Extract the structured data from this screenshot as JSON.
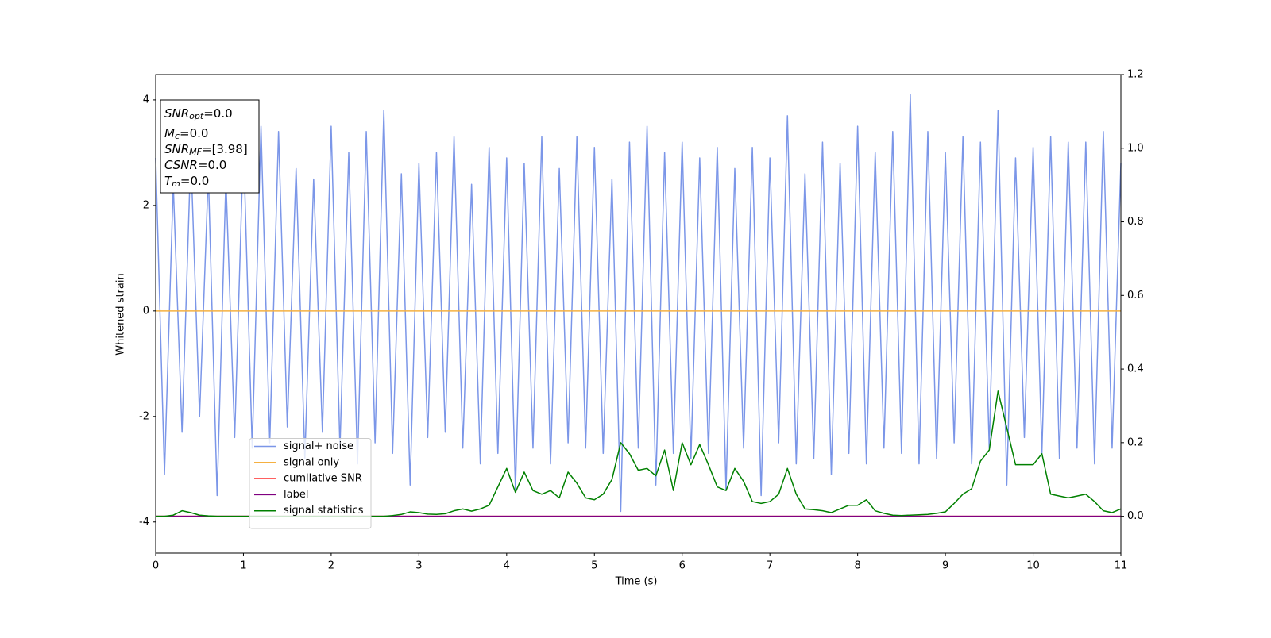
{
  "chart_data": {
    "type": "line",
    "xlabel": "Time (s)",
    "ylabel": "Whitened strain",
    "xlim": [
      0,
      11
    ],
    "xticks": [
      0,
      1,
      2,
      3,
      4,
      5,
      6,
      7,
      8,
      9,
      10,
      11
    ],
    "ylim": [
      -4.59,
      4.48
    ],
    "yticks": [
      -4,
      -2,
      0,
      2,
      4
    ],
    "y2lim": [
      -0.1,
      1.2
    ],
    "y2ticks": [
      {
        "value": 0,
        "label": "0.0"
      },
      {
        "value": 0.2,
        "label": "0.2"
      },
      {
        "value": 0.4,
        "label": "0.4"
      },
      {
        "value": 0.6,
        "label": "0.6"
      },
      {
        "value": 0.8,
        "label": "0.8"
      },
      {
        "value": 1,
        "label": "1.0"
      },
      {
        "value": 1.2,
        "label": "1.2"
      }
    ],
    "legend": "lower left",
    "stats_box": [
      {
        "name": "SNR",
        "sub": "opt",
        "value": "=0.0"
      },
      {
        "name": "M",
        "sub": "c",
        "value": "=0.0"
      },
      {
        "name": "SNR",
        "sub": "MF",
        "value": "=[3.98]"
      },
      {
        "name": "CSNR",
        "sub": "",
        "value": "=0.0"
      },
      {
        "name": "T",
        "sub": "m",
        "value": "=0.0"
      }
    ],
    "series": [
      {
        "name": "signal+ noise",
        "color": "#7b96e8",
        "x": [
          0,
          0.1,
          0.2,
          0.3,
          0.4,
          0.5,
          0.6,
          0.7,
          0.8,
          0.9,
          1,
          1.1,
          1.2,
          1.3,
          1.4,
          1.5,
          1.6,
          1.7,
          1.8,
          1.9,
          2,
          2.1,
          2.2,
          2.3,
          2.4,
          2.5,
          2.6,
          2.7,
          2.8,
          2.9,
          3,
          3.1,
          3.2,
          3.3,
          3.4,
          3.5,
          3.6,
          3.7,
          3.8,
          3.9,
          4,
          4.1,
          4.2,
          4.3,
          4.4,
          4.5,
          4.6,
          4.7,
          4.8,
          4.9,
          5,
          5.1,
          5.2,
          5.3,
          5.4,
          5.5,
          5.6,
          5.7,
          5.8,
          5.9,
          6,
          6.1,
          6.2,
          6.3,
          6.4,
          6.5,
          6.6,
          6.7,
          6.8,
          6.9,
          7,
          7.1,
          7.2,
          7.3,
          7.4,
          7.5,
          7.6,
          7.7,
          7.8,
          7.9,
          8,
          8.1,
          8.2,
          8.3,
          8.4,
          8.5,
          8.6,
          8.7,
          8.8,
          8.9,
          9,
          9.1,
          9.2,
          9.3,
          9.4,
          9.5,
          9.6,
          9.7,
          9.8,
          9.9,
          10,
          10.1,
          10.2,
          10.3,
          10.4,
          10.5,
          10.6,
          10.7,
          10.8,
          10.9,
          11
        ],
        "values": [
          2.9,
          -3.1,
          2.4,
          -2.3,
          3.0,
          -2.0,
          2.6,
          -3.5,
          2.5,
          -2.4,
          3.2,
          -2.6,
          3.5,
          -2.5,
          3.4,
          -2.2,
          2.7,
          -2.8,
          2.5,
          -2.3,
          3.5,
          -2.6,
          3.0,
          -2.9,
          3.4,
          -2.5,
          3.8,
          -2.7,
          2.6,
          -3.3,
          2.8,
          -2.4,
          3.0,
          -2.3,
          3.3,
          -2.6,
          2.4,
          -2.9,
          3.1,
          -2.7,
          2.9,
          -3.4,
          2.8,
          -2.6,
          3.3,
          -2.9,
          2.7,
          -2.5,
          3.3,
          -2.6,
          3.1,
          -2.7,
          2.5,
          -3.8,
          3.2,
          -2.6,
          3.5,
          -3.3,
          3.0,
          -2.7,
          3.2,
          -2.8,
          2.9,
          -2.7,
          3.1,
          -3.4,
          2.7,
          -2.6,
          3.1,
          -3.5,
          2.9,
          -2.5,
          3.7,
          -2.9,
          2.6,
          -2.8,
          3.2,
          -3.1,
          2.8,
          -2.7,
          3.5,
          -2.9,
          3.0,
          -2.6,
          3.4,
          -2.7,
          4.1,
          -2.9,
          3.4,
          -2.8,
          3.0,
          -2.5,
          3.3,
          -2.9,
          3.2,
          -2.6,
          3.8,
          -3.3,
          2.9,
          -2.4,
          3.1,
          -2.7,
          3.3,
          -2.8,
          3.2,
          -2.6,
          3.2,
          -2.9,
          3.4,
          -2.6,
          2.8
        ]
      },
      {
        "name": "signal only",
        "color": "#f5b041",
        "x": [
          0,
          11
        ],
        "values": [
          0,
          0
        ]
      },
      {
        "name": "cumilative SNR",
        "color": "red",
        "axis": "y2",
        "x": [
          0,
          11
        ],
        "values": [
          0,
          0
        ]
      },
      {
        "name": "label",
        "color": "purple",
        "axis": "y2",
        "x": [
          0,
          11
        ],
        "values": [
          0,
          0
        ]
      },
      {
        "name": "signal statistics",
        "color": "green",
        "axis": "y2",
        "x": [
          0,
          0.1,
          0.2,
          0.3,
          0.4,
          0.5,
          0.6,
          0.7,
          0.8,
          0.9,
          1,
          1.1,
          1.2,
          1.3,
          1.4,
          1.5,
          1.6,
          1.7,
          1.8,
          1.9,
          2,
          2.1,
          2.2,
          2.3,
          2.4,
          2.5,
          2.6,
          2.7,
          2.8,
          2.9,
          3,
          3.1,
          3.2,
          3.3,
          3.4,
          3.5,
          3.6,
          3.7,
          3.8,
          3.9,
          4,
          4.1,
          4.2,
          4.3,
          4.4,
          4.5,
          4.6,
          4.7,
          4.8,
          4.9,
          5,
          5.1,
          5.2,
          5.3,
          5.4,
          5.5,
          5.6,
          5.7,
          5.8,
          5.9,
          6,
          6.1,
          6.2,
          6.3,
          6.4,
          6.5,
          6.6,
          6.7,
          6.8,
          6.9,
          7,
          7.1,
          7.2,
          7.3,
          7.4,
          7.5,
          7.6,
          7.7,
          7.8,
          7.9,
          8,
          8.1,
          8.2,
          8.3,
          8.4,
          8.5,
          8.6,
          8.7,
          8.8,
          8.9,
          9,
          9.1,
          9.2,
          9.3,
          9.4,
          9.5,
          9.6,
          9.7,
          9.8,
          9.9,
          10,
          10.1,
          10.2,
          10.3,
          10.4,
          10.5,
          10.6,
          10.7,
          10.8,
          10.9,
          11
        ],
        "values": [
          0.0,
          0.0,
          0.003,
          0.015,
          0.01,
          0.003,
          0.001,
          0.0,
          0.0,
          0.0,
          0.0,
          0.0,
          0.0,
          0.0,
          0.0,
          0.0,
          0.0,
          0.0,
          0.0,
          0.0,
          0.0,
          0.0,
          0.0,
          0.0,
          0.0,
          0.0,
          0.0,
          0.002,
          0.005,
          0.012,
          0.01,
          0.006,
          0.005,
          0.007,
          0.015,
          0.02,
          0.014,
          0.02,
          0.03,
          0.08,
          0.13,
          0.065,
          0.12,
          0.07,
          0.06,
          0.07,
          0.05,
          0.12,
          0.09,
          0.05,
          0.045,
          0.06,
          0.1,
          0.2,
          0.17,
          0.125,
          0.13,
          0.11,
          0.18,
          0.07,
          0.2,
          0.14,
          0.195,
          0.14,
          0.08,
          0.07,
          0.13,
          0.095,
          0.04,
          0.035,
          0.04,
          0.06,
          0.13,
          0.06,
          0.02,
          0.018,
          0.015,
          0.01,
          0.02,
          0.03,
          0.03,
          0.045,
          0.015,
          0.008,
          0.003,
          0.002,
          0.003,
          0.004,
          0.005,
          0.008,
          0.012,
          0.035,
          0.06,
          0.075,
          0.15,
          0.18,
          0.34,
          0.24,
          0.14,
          0.14,
          0.14,
          0.17,
          0.06,
          0.055,
          0.05,
          0.055,
          0.06,
          0.04,
          0.015,
          0.01,
          0.02
        ]
      }
    ]
  }
}
